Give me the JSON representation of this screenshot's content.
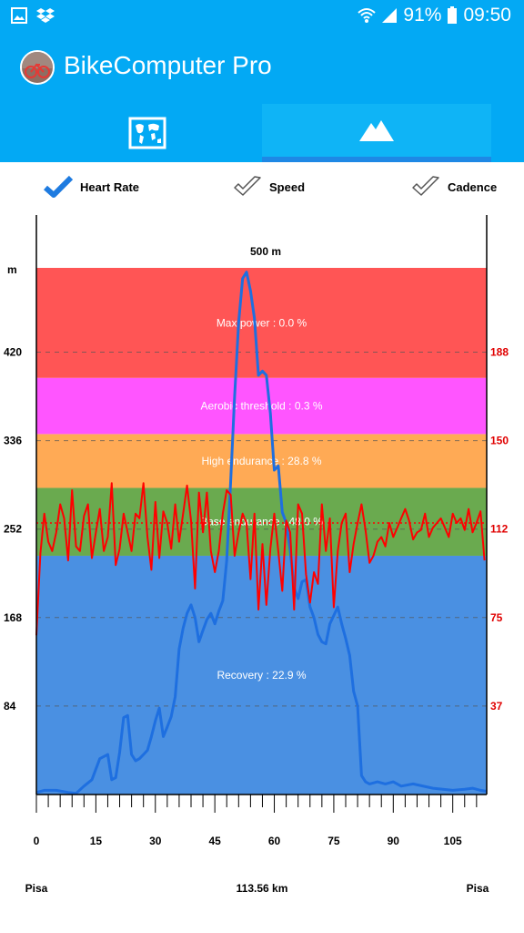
{
  "status_bar": {
    "battery": "91%",
    "time": "09:50",
    "icons": [
      "image-icon",
      "dropbox-icon",
      "wifi-icon",
      "signal-icon",
      "battery-icon"
    ]
  },
  "app_bar": {
    "title": "BikeComputer Pro",
    "background": "#03a9f4"
  },
  "tabs": [
    {
      "name": "map",
      "icon": "map-icon",
      "selected": false
    },
    {
      "name": "elevation",
      "icon": "mountain-icon",
      "selected": true
    }
  ],
  "toggles": [
    {
      "label": "Heart Rate",
      "checked": true
    },
    {
      "label": "Speed",
      "checked": false
    },
    {
      "label": "Cadence",
      "checked": false
    }
  ],
  "chart": {
    "top_label": "500 m",
    "left_unit": "m",
    "left_ticks": [
      "420",
      "336",
      "252",
      "168",
      "84"
    ],
    "right_ticks": [
      "188",
      "150",
      "112",
      "75",
      "37"
    ],
    "x_ticks": [
      "0",
      "15",
      "30",
      "45",
      "60",
      "75",
      "90",
      "105"
    ],
    "footer_start": "Pisa",
    "footer_distance": "113.56 km",
    "footer_end": "Pisa"
  },
  "chart_data": {
    "type": "area",
    "xlim": [
      0,
      113.56
    ],
    "elevation_ylim": [
      0,
      500
    ],
    "heart_rate_ylim": [
      0,
      225
    ],
    "zones": [
      {
        "label": "Recovery : 22.9 %",
        "from": 0,
        "to": 102,
        "color": "#4a90e2"
      },
      {
        "label": "Base endurance : 48.0 %",
        "from": 102,
        "to": 131,
        "color": "#6aaa4f"
      },
      {
        "label": "High endurance : 28.8 %",
        "from": 131,
        "to": 154,
        "color": "#ffaa55"
      },
      {
        "label": "Aerobic threshold : 0.3 %",
        "from": 154,
        "to": 178,
        "color": "#ff55ff"
      },
      {
        "label": "Max power : 0.0 %",
        "from": 178,
        "to": 225,
        "color": "#ff5555"
      }
    ],
    "average_heart_rate": 116,
    "series": [
      {
        "color": "#1e6fe0",
        "x": [
          0,
          2,
          5,
          8,
          10,
          12,
          14,
          16,
          18,
          19,
          20,
          21,
          22,
          23,
          24,
          25,
          26,
          27,
          28,
          29,
          30,
          31,
          32,
          33,
          34,
          35,
          36,
          37,
          38,
          39,
          40,
          41,
          42,
          43,
          44,
          45,
          46,
          47,
          48,
          49,
          50,
          51,
          52,
          53,
          54,
          55,
          56,
          57,
          58,
          59,
          60,
          61,
          62,
          63,
          64,
          65,
          66,
          67,
          68,
          69,
          70,
          71,
          72,
          73,
          74,
          75,
          76,
          77,
          78,
          79,
          80,
          81,
          82,
          83,
          84,
          86,
          88,
          90,
          92,
          95,
          100,
          105,
          108,
          110,
          112,
          113.56
        ],
        "y": [
          2,
          4,
          4,
          2,
          1,
          8,
          14,
          34,
          38,
          14,
          16,
          40,
          73,
          75,
          38,
          32,
          34,
          38,
          42,
          55,
          70,
          82,
          55,
          64,
          74,
          93,
          138,
          158,
          172,
          180,
          168,
          145,
          156,
          166,
          172,
          162,
          174,
          184,
          222,
          298,
          378,
          448,
          490,
          496,
          478,
          452,
          398,
          402,
          398,
          362,
          308,
          312,
          268,
          258,
          232,
          196,
          186,
          202,
          204,
          178,
          168,
          152,
          145,
          143,
          162,
          170,
          178,
          162,
          148,
          132,
          98,
          84,
          18,
          12,
          10,
          12,
          10,
          12,
          8,
          10,
          6,
          4,
          5,
          6,
          4,
          3
        ]
      },
      {
        "color": "#ff0000",
        "x": [
          0,
          1,
          2,
          3,
          4,
          5,
          6,
          7,
          8,
          9,
          10,
          11,
          12,
          13,
          14,
          15,
          16,
          17,
          18,
          19,
          20,
          21,
          22,
          23,
          24,
          25,
          26,
          27,
          28,
          29,
          30,
          31,
          32,
          33,
          34,
          35,
          36,
          37,
          38,
          39,
          40,
          41,
          42,
          43,
          44,
          45,
          46,
          47,
          48,
          49,
          50,
          51,
          52,
          53,
          54,
          55,
          56,
          57,
          58,
          59,
          60,
          61,
          62,
          63,
          64,
          65,
          66,
          67,
          68,
          69,
          70,
          71,
          72,
          73,
          74,
          75,
          76,
          77,
          78,
          79,
          80,
          81,
          82,
          83,
          84,
          85,
          86,
          87,
          88,
          89,
          90,
          91,
          92,
          93,
          94,
          95,
          96,
          97,
          98,
          99,
          100,
          101,
          102,
          103,
          104,
          105,
          106,
          107,
          108,
          109,
          110,
          111,
          112,
          113
        ],
        "y": [
          68,
          103,
          120,
          108,
          104,
          112,
          124,
          118,
          100,
          130,
          106,
          104,
          119,
          124,
          101,
          112,
          122,
          104,
          110,
          133,
          98,
          105,
          120,
          112,
          104,
          120,
          118,
          133,
          110,
          96,
          125,
          101,
          121,
          116,
          105,
          124,
          108,
          120,
          132,
          117,
          88,
          129,
          112,
          129,
          104,
          95,
          104,
          120,
          130,
          128,
          102,
          112,
          120,
          116,
          92,
          120,
          79,
          107,
          81,
          105,
          120,
          104,
          87,
          117,
          112,
          79,
          124,
          120,
          94,
          82,
          95,
          90,
          124,
          104,
          118,
          80,
          104,
          116,
          120,
          95,
          107,
          116,
          124,
          113,
          99,
          102,
          108,
          110,
          106,
          116,
          110,
          114,
          118,
          122,
          117,
          109,
          112,
          113,
          120,
          110,
          114,
          116,
          118,
          114,
          110,
          120,
          116,
          118,
          113,
          122,
          112,
          116,
          121,
          100
        ]
      }
    ]
  }
}
